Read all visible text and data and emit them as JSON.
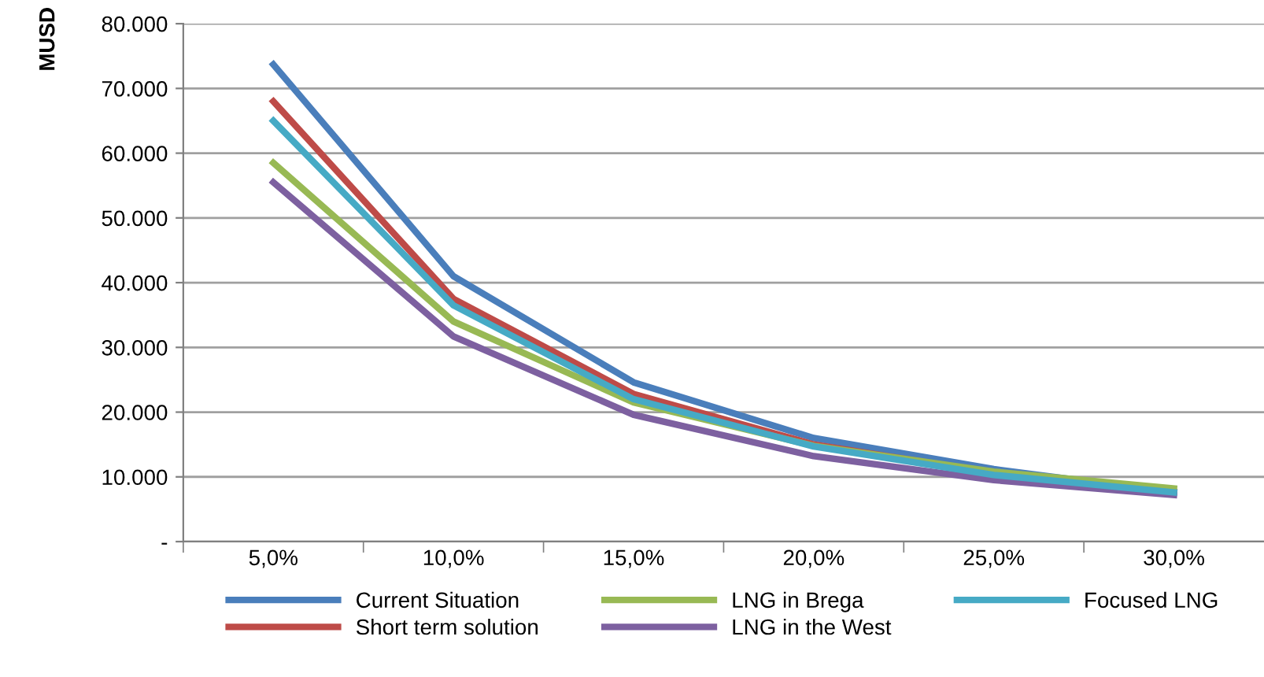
{
  "chart_data": {
    "type": "line",
    "ylabel": "MUSD",
    "categories": [
      "5,0%",
      "10,0%",
      "15,0%",
      "20,0%",
      "25,0%",
      "30,0%"
    ],
    "series": [
      {
        "name": "Current Situation",
        "color": "#4a7ebb",
        "values": [
          73700,
          41000,
          24600,
          16000,
          11200,
          7600
        ]
      },
      {
        "name": "Short term solution",
        "color": "#be4b48",
        "values": [
          68000,
          37500,
          22800,
          15000,
          10600,
          7700
        ]
      },
      {
        "name": "LNG in Brega",
        "color": "#98b954",
        "values": [
          58500,
          34000,
          21500,
          14800,
          10800,
          8200
        ]
      },
      {
        "name": "LNG in the West",
        "color": "#7d60a0",
        "values": [
          55500,
          31700,
          19600,
          13200,
          9500,
          7200
        ]
      },
      {
        "name": "Focused LNG",
        "color": "#46aac5",
        "values": [
          65000,
          36500,
          22000,
          14700,
          10300,
          7600
        ]
      }
    ],
    "ylim": [
      0,
      80000
    ],
    "yticks": [
      {
        "value": 0,
        "label": "-"
      },
      {
        "value": 10000,
        "label": "10.000"
      },
      {
        "value": 20000,
        "label": "20.000"
      },
      {
        "value": 30000,
        "label": "30.000"
      },
      {
        "value": 40000,
        "label": "40.000"
      },
      {
        "value": 50000,
        "label": "50.000"
      },
      {
        "value": 60000,
        "label": "60.000"
      },
      {
        "value": 70000,
        "label": "70.000"
      },
      {
        "value": 80000,
        "label": "80.000"
      }
    ],
    "grid": "y",
    "legend": "bottom",
    "marker": "none",
    "line_style": "solid"
  }
}
